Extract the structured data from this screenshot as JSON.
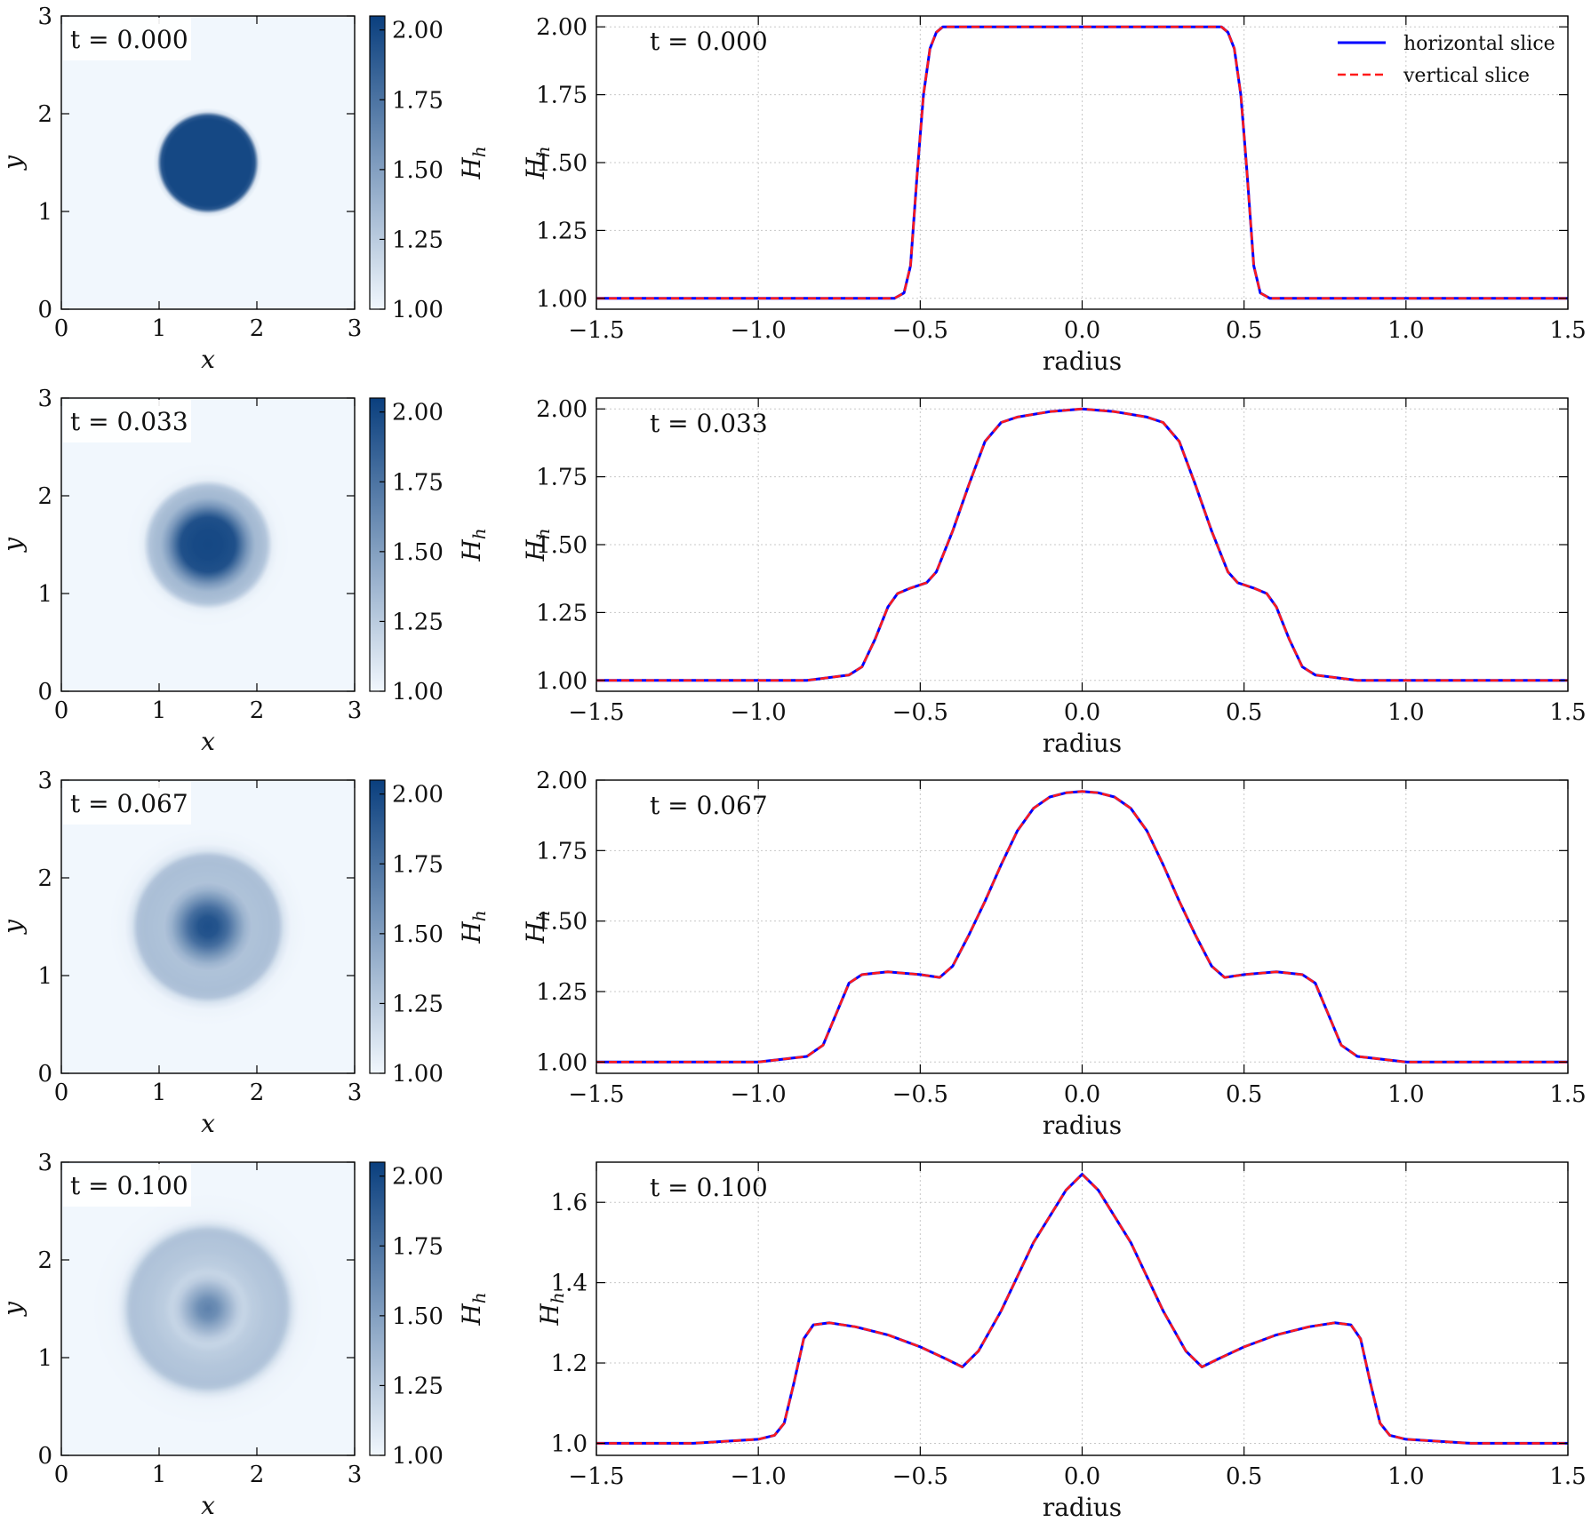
{
  "colors": {
    "horizontal": "#0000ff",
    "vertical": "#ff1a1a",
    "grid": "#c8c8c8",
    "cmap_low": "#f1f7fd",
    "cmap_high": "#0a3f7e"
  },
  "map_axes": {
    "xlabel": "x",
    "ylabel": "y",
    "xlim": [
      0,
      3
    ],
    "ylim": [
      0,
      3
    ],
    "ticks": [
      "0",
      "1",
      "2",
      "3"
    ],
    "colorbar_label": "H_h",
    "colorbar_range": [
      1.0,
      2.05
    ],
    "colorbar_ticks": [
      "1.00",
      "1.25",
      "1.50",
      "1.75",
      "2.00"
    ]
  },
  "legend": {
    "horizontal": "horizontal slice",
    "vertical": "vertical slice"
  },
  "chart_data": [
    {
      "type": "heatmap",
      "time_label": "t = 0.000",
      "radial_profile": {
        "r": [
          0,
          0.44,
          0.48,
          0.5,
          0.52,
          0.56
        ],
        "h": [
          2.0,
          2.0,
          1.9,
          1.5,
          1.1,
          1.0
        ]
      }
    },
    {
      "type": "line",
      "time_label": "t = 0.000",
      "xlabel": "radius",
      "ylabel": "H_h",
      "xlim": [
        -1.5,
        1.5
      ],
      "ylim": [
        0.96,
        2.04
      ],
      "xticks": [
        "−1.5",
        "−1.0",
        "−0.5",
        "0.0",
        "0.5",
        "1.0",
        "1.5"
      ],
      "yticks": [
        1.0,
        1.25,
        1.5,
        1.75,
        2.0
      ],
      "ytick_labels": [
        "1.00",
        "1.25",
        "1.50",
        "1.75",
        "2.00"
      ],
      "series": [
        {
          "name": "horizontal slice",
          "x": [
            -1.5,
            -0.58,
            -0.55,
            -0.53,
            -0.51,
            -0.5,
            -0.49,
            -0.47,
            -0.45,
            -0.43,
            0.43,
            0.45,
            0.47,
            0.49,
            0.5,
            0.51,
            0.53,
            0.55,
            0.58,
            1.5
          ],
          "y": [
            1.0,
            1.0,
            1.02,
            1.12,
            1.45,
            1.6,
            1.75,
            1.92,
            1.98,
            2.0,
            2.0,
            1.98,
            1.92,
            1.75,
            1.6,
            1.45,
            1.12,
            1.02,
            1.0,
            1.0
          ]
        },
        {
          "name": "vertical slice",
          "x": [
            -1.5,
            -0.58,
            -0.55,
            -0.53,
            -0.51,
            -0.5,
            -0.49,
            -0.47,
            -0.45,
            -0.43,
            0.43,
            0.45,
            0.47,
            0.49,
            0.5,
            0.51,
            0.53,
            0.55,
            0.58,
            1.5
          ],
          "y": [
            1.0,
            1.0,
            1.02,
            1.12,
            1.45,
            1.6,
            1.75,
            1.92,
            1.98,
            2.0,
            2.0,
            1.98,
            1.92,
            1.75,
            1.6,
            1.45,
            1.12,
            1.02,
            1.0,
            1.0
          ]
        }
      ]
    },
    {
      "type": "heatmap",
      "time_label": "t = 0.033",
      "radial_profile": {
        "r": [
          0,
          0.15,
          0.28,
          0.4,
          0.48,
          0.55,
          0.6,
          0.66,
          0.72,
          0.85
        ],
        "h": [
          2.0,
          1.99,
          1.95,
          1.55,
          1.36,
          1.33,
          1.28,
          1.05,
          1.01,
          1.0
        ]
      }
    },
    {
      "type": "line",
      "time_label": "t = 0.033",
      "xlabel": "radius",
      "ylabel": "H_h",
      "xlim": [
        -1.5,
        1.5
      ],
      "ylim": [
        0.96,
        2.04
      ],
      "xticks": [
        "−1.5",
        "−1.0",
        "−0.5",
        "0.0",
        "0.5",
        "1.0",
        "1.5"
      ],
      "yticks": [
        1.0,
        1.25,
        1.5,
        1.75,
        2.0
      ],
      "ytick_labels": [
        "1.00",
        "1.25",
        "1.50",
        "1.75",
        "2.00"
      ],
      "series": [
        {
          "name": "horizontal slice",
          "x": [
            -1.5,
            -0.85,
            -0.72,
            -0.68,
            -0.64,
            -0.6,
            -0.57,
            -0.53,
            -0.48,
            -0.45,
            -0.4,
            -0.35,
            -0.3,
            -0.25,
            -0.2,
            -0.1,
            0,
            0.1,
            0.2,
            0.25,
            0.3,
            0.35,
            0.4,
            0.45,
            0.48,
            0.53,
            0.57,
            0.6,
            0.64,
            0.68,
            0.72,
            0.85,
            1.5
          ],
          "y": [
            1.0,
            1.0,
            1.02,
            1.05,
            1.15,
            1.27,
            1.32,
            1.34,
            1.36,
            1.4,
            1.55,
            1.72,
            1.88,
            1.95,
            1.97,
            1.99,
            2.0,
            1.99,
            1.97,
            1.95,
            1.88,
            1.72,
            1.55,
            1.4,
            1.36,
            1.34,
            1.32,
            1.27,
            1.15,
            1.05,
            1.02,
            1.0,
            1.0
          ]
        },
        {
          "name": "vertical slice",
          "x": [
            -1.5,
            -0.85,
            -0.72,
            -0.68,
            -0.64,
            -0.6,
            -0.57,
            -0.53,
            -0.48,
            -0.45,
            -0.4,
            -0.35,
            -0.3,
            -0.25,
            -0.2,
            -0.1,
            0,
            0.1,
            0.2,
            0.25,
            0.3,
            0.35,
            0.4,
            0.45,
            0.48,
            0.53,
            0.57,
            0.6,
            0.64,
            0.68,
            0.72,
            0.85,
            1.5
          ],
          "y": [
            1.0,
            1.0,
            1.02,
            1.05,
            1.15,
            1.27,
            1.32,
            1.34,
            1.36,
            1.4,
            1.55,
            1.72,
            1.88,
            1.95,
            1.97,
            1.99,
            2.0,
            1.99,
            1.97,
            1.95,
            1.88,
            1.72,
            1.55,
            1.4,
            1.36,
            1.34,
            1.32,
            1.27,
            1.15,
            1.05,
            1.02,
            1.0,
            1.0
          ]
        }
      ]
    },
    {
      "type": "heatmap",
      "time_label": "t = 0.067",
      "radial_profile": {
        "r": [
          0,
          0.1,
          0.2,
          0.3,
          0.38,
          0.45,
          0.55,
          0.65,
          0.72,
          0.78,
          0.85,
          1.0
        ],
        "h": [
          1.96,
          1.93,
          1.78,
          1.55,
          1.38,
          1.3,
          1.31,
          1.32,
          1.3,
          1.1,
          1.02,
          1.0
        ]
      }
    },
    {
      "type": "line",
      "time_label": "t = 0.067",
      "xlabel": "radius",
      "ylabel": "H_h",
      "xlim": [
        -1.5,
        1.5
      ],
      "ylim": [
        0.96,
        2.0
      ],
      "xticks": [
        "−1.5",
        "−1.0",
        "−0.5",
        "0.0",
        "0.5",
        "1.0",
        "1.5"
      ],
      "yticks": [
        1.0,
        1.25,
        1.5,
        1.75,
        2.0
      ],
      "ytick_labels": [
        "1.00",
        "1.25",
        "1.50",
        "1.75",
        "2.00"
      ],
      "series": [
        {
          "name": "horizontal slice",
          "x": [
            -1.5,
            -1.0,
            -0.85,
            -0.8,
            -0.76,
            -0.72,
            -0.68,
            -0.6,
            -0.5,
            -0.44,
            -0.4,
            -0.35,
            -0.3,
            -0.25,
            -0.2,
            -0.15,
            -0.1,
            -0.05,
            0,
            0.05,
            0.1,
            0.15,
            0.2,
            0.25,
            0.3,
            0.35,
            0.4,
            0.44,
            0.5,
            0.6,
            0.68,
            0.72,
            0.76,
            0.8,
            0.85,
            1.0,
            1.5
          ],
          "y": [
            1.0,
            1.0,
            1.02,
            1.06,
            1.17,
            1.28,
            1.31,
            1.32,
            1.31,
            1.3,
            1.34,
            1.45,
            1.57,
            1.7,
            1.82,
            1.9,
            1.94,
            1.955,
            1.96,
            1.955,
            1.94,
            1.9,
            1.82,
            1.7,
            1.57,
            1.45,
            1.34,
            1.3,
            1.31,
            1.32,
            1.31,
            1.28,
            1.17,
            1.06,
            1.02,
            1.0,
            1.0
          ]
        },
        {
          "name": "vertical slice",
          "x": [
            -1.5,
            -1.0,
            -0.85,
            -0.8,
            -0.76,
            -0.72,
            -0.68,
            -0.6,
            -0.5,
            -0.44,
            -0.4,
            -0.35,
            -0.3,
            -0.25,
            -0.2,
            -0.15,
            -0.1,
            -0.05,
            0,
            0.05,
            0.1,
            0.15,
            0.2,
            0.25,
            0.3,
            0.35,
            0.4,
            0.44,
            0.5,
            0.6,
            0.68,
            0.72,
            0.76,
            0.8,
            0.85,
            1.0,
            1.5
          ],
          "y": [
            1.0,
            1.0,
            1.02,
            1.06,
            1.17,
            1.28,
            1.31,
            1.32,
            1.31,
            1.3,
            1.34,
            1.45,
            1.57,
            1.7,
            1.82,
            1.9,
            1.94,
            1.955,
            1.96,
            1.955,
            1.94,
            1.9,
            1.82,
            1.7,
            1.57,
            1.45,
            1.34,
            1.3,
            1.31,
            1.32,
            1.31,
            1.28,
            1.17,
            1.06,
            1.02,
            1.0,
            1.0
          ]
        }
      ]
    },
    {
      "type": "heatmap",
      "time_label": "t = 0.100",
      "radial_profile": {
        "r": [
          0,
          0.1,
          0.2,
          0.3,
          0.37,
          0.45,
          0.6,
          0.75,
          0.8,
          0.86,
          0.92,
          1.0,
          1.2
        ],
        "h": [
          1.67,
          1.6,
          1.42,
          1.25,
          1.19,
          1.24,
          1.28,
          1.3,
          1.29,
          1.12,
          1.03,
          1.01,
          1.0
        ]
      }
    },
    {
      "type": "line",
      "time_label": "t = 0.100",
      "xlabel": "radius",
      "ylabel": "H_h",
      "xlim": [
        -1.5,
        1.5
      ],
      "ylim": [
        0.97,
        1.7
      ],
      "xticks": [
        "−1.5",
        "−1.0",
        "−0.5",
        "0.0",
        "0.5",
        "1.0",
        "1.5"
      ],
      "yticks": [
        1.0,
        1.2,
        1.4,
        1.6
      ],
      "ytick_labels": [
        "1.0",
        "1.2",
        "1.4",
        "1.6"
      ],
      "series": [
        {
          "name": "horizontal slice",
          "x": [
            -1.5,
            -1.2,
            -1.0,
            -0.95,
            -0.92,
            -0.89,
            -0.86,
            -0.83,
            -0.78,
            -0.7,
            -0.6,
            -0.5,
            -0.42,
            -0.37,
            -0.32,
            -0.25,
            -0.15,
            -0.05,
            0,
            0.05,
            0.15,
            0.25,
            0.32,
            0.37,
            0.42,
            0.5,
            0.6,
            0.7,
            0.78,
            0.83,
            0.86,
            0.89,
            0.92,
            0.95,
            1.0,
            1.2,
            1.5
          ],
          "y": [
            1.0,
            1.0,
            1.01,
            1.02,
            1.05,
            1.15,
            1.26,
            1.295,
            1.3,
            1.29,
            1.27,
            1.24,
            1.21,
            1.19,
            1.23,
            1.33,
            1.5,
            1.63,
            1.67,
            1.63,
            1.5,
            1.33,
            1.23,
            1.19,
            1.21,
            1.24,
            1.27,
            1.29,
            1.3,
            1.295,
            1.26,
            1.15,
            1.05,
            1.02,
            1.01,
            1.0,
            1.0
          ]
        },
        {
          "name": "vertical slice",
          "x": [
            -1.5,
            -1.2,
            -1.0,
            -0.95,
            -0.92,
            -0.89,
            -0.86,
            -0.83,
            -0.78,
            -0.7,
            -0.6,
            -0.5,
            -0.42,
            -0.37,
            -0.32,
            -0.25,
            -0.15,
            -0.05,
            0,
            0.05,
            0.15,
            0.25,
            0.32,
            0.37,
            0.42,
            0.5,
            0.6,
            0.7,
            0.78,
            0.83,
            0.86,
            0.89,
            0.92,
            0.95,
            1.0,
            1.2,
            1.5
          ],
          "y": [
            1.0,
            1.0,
            1.01,
            1.02,
            1.05,
            1.15,
            1.26,
            1.295,
            1.3,
            1.29,
            1.27,
            1.24,
            1.21,
            1.19,
            1.23,
            1.33,
            1.5,
            1.63,
            1.67,
            1.63,
            1.5,
            1.33,
            1.23,
            1.19,
            1.21,
            1.24,
            1.27,
            1.29,
            1.3,
            1.295,
            1.26,
            1.15,
            1.05,
            1.02,
            1.01,
            1.0,
            1.0
          ]
        }
      ]
    }
  ]
}
